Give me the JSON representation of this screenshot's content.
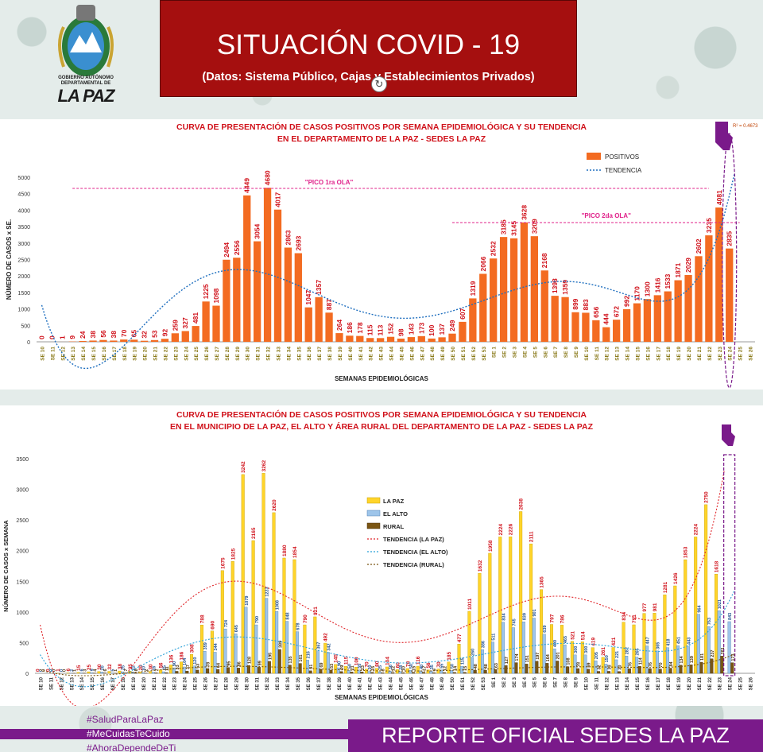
{
  "header": {
    "title": "SITUACIÓN  COVID - 19",
    "subtitle": "(Datos: Sistema Público, Cajas y Establecimientos Privados)",
    "logo_name": "GOBIERNO AUTÓNOMO DEPARTAMENTAL DE",
    "logo_city": "LA PAZ"
  },
  "footer": {
    "tags": [
      "#SaludParaLaPaz",
      "#MeCuidasTeCuido",
      "#AhoraDependeDeTi"
    ],
    "report": "REPORTE OFICIAL SEDES LA PAZ"
  },
  "colors": {
    "title_bg": "#a50f0f",
    "purple": "#7a1a8a",
    "positivos": "#f36b21",
    "lapaz": "#ffd42a",
    "elalto": "#9ec5ea",
    "rural": "#7a5513"
  },
  "chart_data": [
    {
      "type": "bar",
      "title": "CURVA DE PRESENTACIÓN DE CASOS POSITIVOS POR SEMANA EPIDEMIOLÓGICA Y SU TENDENCIA\nEN EL DEPARTAMENTO DE LA PAZ - SEDES LA PAZ",
      "title_lines": [
        "CURVA DE PRESENTACIÓN DE CASOS POSITIVOS POR SEMANA EPIDEMIOLÓGICA Y SU TENDENCIA",
        "EN EL DEPARTAMENTO DE LA PAZ - SEDES LA PAZ"
      ],
      "xlabel": "SEMANAS EPIDEMIOLÓGICAS",
      "ylabel": "NÚMERO DE CASOS x SE.",
      "ylim": [
        0,
        5000
      ],
      "yticks": [
        0,
        500,
        1000,
        1500,
        2000,
        2500,
        3000,
        3500,
        4000,
        4500,
        5000
      ],
      "r2": "R² = 0.4673",
      "categories": [
        "SE 10",
        "SE 11",
        "SE 12",
        "SE 13",
        "SE 14",
        "SE 15",
        "SE 16",
        "SE 17",
        "SE 18",
        "SE 19",
        "SE 20",
        "SE 21",
        "SE 22",
        "SE 23",
        "SE 24",
        "SE 25",
        "SE 26",
        "SE 27",
        "SE 28",
        "SE 29",
        "SE 30",
        "SE 31",
        "SE 32",
        "SE 33",
        "SE 34",
        "SE 35",
        "SE 36",
        "SE 37",
        "SE 38",
        "SE 39",
        "SE 40",
        "SE 41",
        "SE 42",
        "SE 43",
        "SE 44",
        "SE 45",
        "SE 46",
        "SE 47",
        "SE 48",
        "SE 49",
        "SE 50",
        "SE 51",
        "SE 52",
        "SE 53",
        "SE 1",
        "SE 2",
        "SE 3",
        "SE 4",
        "SE 5",
        "SE 6",
        "SE 7",
        "SE 8",
        "SE 9",
        "SE 10",
        "SE 11",
        "SE 12",
        "SE 13",
        "SE 14",
        "SE 15",
        "SE 16",
        "SE 17",
        "SE 18",
        "SE 19",
        "SE 20",
        "SE 21",
        "SE 22",
        "SE 23",
        "SE 24",
        "SE 25",
        "SE 26"
      ],
      "series": [
        {
          "name": "POSITIVOS",
          "values": [
            0,
            0,
            1,
            9,
            24,
            38,
            56,
            38,
            70,
            65,
            32,
            53,
            92,
            259,
            327,
            481,
            1225,
            1098,
            2494,
            2556,
            4449,
            3054,
            4680,
            4017,
            2863,
            2693,
            1047,
            1357,
            887,
            264,
            186,
            178,
            115,
            113,
            152,
            98,
            143,
            173,
            100,
            137,
            249,
            607,
            1319,
            2066,
            2532,
            3185,
            3145,
            3628,
            3209,
            2168,
            1398,
            1359,
            899,
            883,
            656,
            444,
            672,
            992,
            1170,
            1300,
            1416,
            1533,
            1871,
            2029,
            2602,
            3235,
            4081,
            2835,
            null,
            null
          ]
        }
      ],
      "trend_label": "TENDENCIA",
      "annotations": [
        "\"PICO 1ra OLA\"",
        "\"PICO 2da OLA\""
      ]
    },
    {
      "type": "bar",
      "title": "CURVA DE PRESENTACIÓN DE CASOS POSITIVOS POR SEMANA EPIDEMIOLÓGICA Y SU TENDENCIA\nEN EL  MUNICIPIO DE LA PAZ, EL ALTO Y ÁREA RURAL DEL DEPARTAMENTO DE LA PAZ - SEDES LA PAZ",
      "title_lines": [
        "CURVA DE PRESENTACIÓN DE CASOS POSITIVOS POR SEMANA EPIDEMIOLÓGICA Y SU TENDENCIA",
        "EN EL  MUNICIPIO DE LA PAZ, EL ALTO Y ÁREA RURAL DEL DEPARTAMENTO DE LA PAZ - SEDES LA PAZ"
      ],
      "xlabel": "SEMANAS EPIDEMIOLÓGICAS",
      "ylabel": "NÚMERO DE CASOS x SEMANA",
      "ylim": [
        0,
        3500
      ],
      "yticks": [
        0,
        500,
        1000,
        1500,
        2000,
        2500,
        3000,
        3500
      ],
      "categories": [
        "SE 10",
        "SE 11",
        "SE 12",
        "SE 13",
        "SE 14",
        "SE 15",
        "SE 16",
        "SE 17",
        "SE 18",
        "SE 19",
        "SE 20",
        "SE 21",
        "SE 22",
        "SE 23",
        "SE 24",
        "SE 25",
        "SE 26",
        "SE 27",
        "SE 28",
        "SE 29",
        "SE 30",
        "SE 31",
        "SE 32",
        "SE 33",
        "SE 34",
        "SE 35",
        "SE 36",
        "SE 37",
        "SE 38",
        "SE 39",
        "SE 40",
        "SE 41",
        "SE 42",
        "SE 43",
        "SE 44",
        "SE 45",
        "SE 46",
        "SE 47",
        "SE 48",
        "SE 49",
        "SE 50",
        "SE 51",
        "SE 52",
        "SE 53",
        "SE 1",
        "SE 2",
        "SE 3",
        "SE 4",
        "SE 5",
        "SE 6",
        "SE 7",
        "SE 8",
        "SE 9",
        "SE 10",
        "SE 11",
        "SE 12",
        "SE 13",
        "SE 14",
        "SE 15",
        "SE 16",
        "SE 17",
        "SE 18",
        "SE 19",
        "SE 20",
        "SE 21",
        "SE 22",
        "SE 23",
        "SE 24",
        "SE 25",
        "SE 26"
      ],
      "series": [
        {
          "name": "LA PAZ",
          "values": [
            0,
            0,
            1,
            6,
            15,
            25,
            30,
            32,
            38,
            35,
            20,
            30,
            56,
            136,
            186,
            308,
            788,
            690,
            1675,
            1825,
            3242,
            2165,
            3262,
            2620,
            1880,
            1854,
            790,
            921,
            492,
            145,
            115,
            100,
            70,
            80,
            104,
            60,
            78,
            116,
            56,
            70,
            185,
            477,
            1011,
            1632,
            1958,
            2224,
            2226,
            2638,
            2111,
            1365,
            797,
            786,
            521,
            514,
            419,
            261,
            421,
            834,
            791,
            977,
            981,
            1281,
            1426,
            1853,
            2224,
            2750,
            1618,
            null,
            null,
            null
          ]
        },
        {
          "name": "EL ALTO",
          "values": [
            0,
            0,
            0,
            2,
            6,
            9,
            20,
            5,
            25,
            22,
            10,
            16,
            25,
            90,
            104,
            120,
            359,
            344,
            724,
            645,
            1079,
            790,
            1223,
            1008,
            848,
            678,
            216,
            367,
            342,
            90,
            50,
            55,
            30,
            25,
            36,
            28,
            50,
            40,
            35,
            55,
            50,
            115,
            260,
            386,
            511,
            834,
            745,
            839,
            901,
            639,
            400,
            465,
            300,
            300,
            205,
            150,
            221,
            282,
            265,
            447,
            365,
            418,
            451,
            443,
            964,
            763,
            1021,
            843,
            null,
            null
          ]
        },
        {
          "name": "RURAL",
          "values": [
            0,
            0,
            0,
            1,
            3,
            4,
            6,
            1,
            7,
            8,
            2,
            7,
            11,
            33,
            37,
            53,
            78,
            64,
            95,
            86,
            128,
            99,
            195,
            389,
            135,
            161,
            41,
            69,
            53,
            29,
            21,
            23,
            15,
            8,
            12,
            10,
            15,
            17,
            9,
            12,
            14,
            15,
            48,
            48,
            63,
            127,
            174,
            151,
            197,
            164,
            201,
            108,
            78,
            69,
            32,
            33,
            30,
            76,
            114,
            76,
            70,
            84,
            134,
            139,
            181,
            237,
            281,
            173,
            null,
            null
          ]
        }
      ],
      "trend_labels": [
        "TENDENCIA (LA PAZ)",
        "TENDENCIA (EL ALTO)",
        "TENDENCIA (RURAL)"
      ]
    }
  ]
}
